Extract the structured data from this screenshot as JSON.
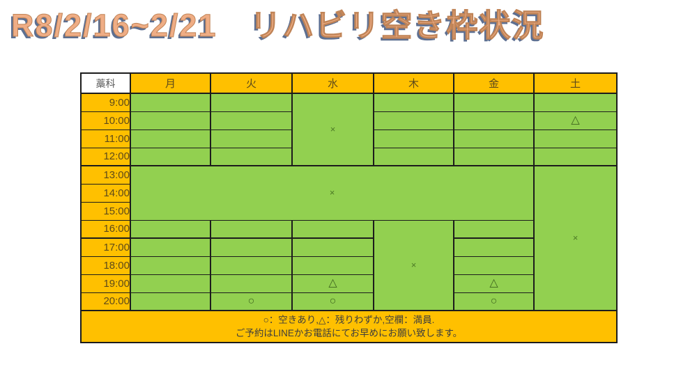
{
  "title": "R8/2/16~2/21　リハビリ空き枠状況",
  "colors": {
    "header_orange": "#ffc000",
    "slot_green": "#92d050",
    "title_fill": "#efad85",
    "title_shadow": "#5d6f91",
    "grid_border": "#1c1c1c",
    "symbol_green": "#44682a"
  },
  "table": {
    "corner_label": "藁科",
    "days": [
      "月",
      "火",
      "水",
      "木",
      "金",
      "土"
    ],
    "times": [
      "9:00",
      "10:00",
      "11:00",
      "12:00",
      "13:00",
      "14:00",
      "15:00",
      "16:00",
      "17:00",
      "18:00",
      "19:00",
      "20:00"
    ],
    "block_start_rows": [
      0,
      4,
      8
    ],
    "cells": [
      {
        "row": 0,
        "col": 2,
        "rowspan": 4,
        "colspan": 1,
        "symbol": "×"
      },
      {
        "row": 1,
        "col": 5,
        "rowspan": 1,
        "colspan": 1,
        "symbol": "△"
      },
      {
        "row": 4,
        "col": 0,
        "rowspan": 3,
        "colspan": 5,
        "symbol": "×"
      },
      {
        "row": 4,
        "col": 5,
        "rowspan": 8,
        "colspan": 1,
        "symbol": "×"
      },
      {
        "row": 7,
        "col": 3,
        "rowspan": 5,
        "colspan": 1,
        "symbol": "×"
      },
      {
        "row": 10,
        "col": 2,
        "rowspan": 1,
        "colspan": 1,
        "symbol": "△"
      },
      {
        "row": 10,
        "col": 4,
        "rowspan": 1,
        "colspan": 1,
        "symbol": "△"
      },
      {
        "row": 11,
        "col": 1,
        "rowspan": 1,
        "colspan": 1,
        "symbol": "○"
      },
      {
        "row": 11,
        "col": 2,
        "rowspan": 1,
        "colspan": 1,
        "symbol": "○"
      },
      {
        "row": 11,
        "col": 4,
        "rowspan": 1,
        "colspan": 1,
        "symbol": "○"
      }
    ]
  },
  "footer": {
    "line1": "○：空きあり,△：残りわずか,空欄：満員.",
    "line2": "ご予約はLINEかお電話にてお早めにお願い致します。"
  }
}
